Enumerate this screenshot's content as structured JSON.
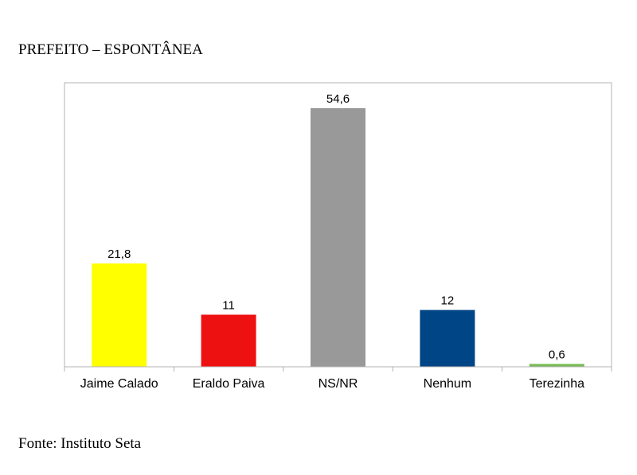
{
  "page": {
    "title": "PREFEITO – ESPONTÂNEA",
    "source": "Fonte: Instituto Seta"
  },
  "chart_data": {
    "type": "bar",
    "title": "PREFEITO – ESPONTÂNEA",
    "categories": [
      "Jaime Calado",
      "Eraldo Paiva",
      "NS/NR",
      "Nenhum",
      "Terezinha"
    ],
    "values": [
      21.8,
      11,
      54.6,
      12,
      0.6
    ],
    "value_labels": [
      "21,8",
      "11",
      "54,6",
      "12",
      "0,6"
    ],
    "colors": [
      "#ffff00",
      "#ee1111",
      "#999999",
      "#004586",
      "#77bb55"
    ],
    "ylim": [
      0,
      54.6
    ],
    "grid": false,
    "legend": "none"
  }
}
